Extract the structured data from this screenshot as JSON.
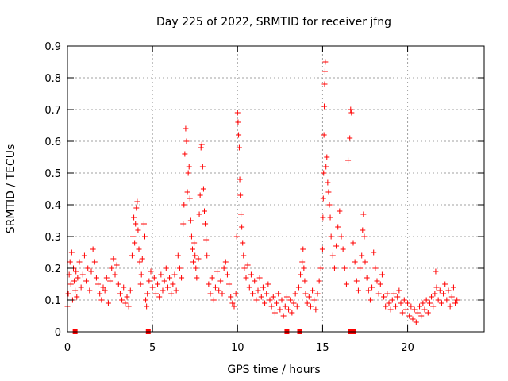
{
  "chart_data": {
    "type": "scatter",
    "title": "Day 225 of 2022, SRMTID for receiver jfng",
    "xlabel": "GPS time / hours",
    "ylabel": "SRMTID / TECUs",
    "xlim": [
      0,
      24.5
    ],
    "ylim": [
      0,
      0.9
    ],
    "xticks": [
      0,
      5,
      10,
      15,
      20
    ],
    "yticks": [
      0,
      0.1,
      0.2,
      0.3,
      0.4,
      0.5,
      0.6,
      0.7,
      0.8,
      0.9
    ],
    "xtick_labels": [
      "0",
      "5",
      "10",
      "15",
      "20"
    ],
    "ytick_labels": [
      "0",
      "0.1",
      "0.2",
      "0.3",
      "0.4",
      "0.5",
      "0.6",
      "0.7",
      "0.8",
      "0.9"
    ],
    "grid": true,
    "marker": "+",
    "color": "#ff0000",
    "series": [
      {
        "name": "SRMTID",
        "points": [
          [
            0.0,
            0.08
          ],
          [
            0.05,
            0.12
          ],
          [
            0.1,
            0.18
          ],
          [
            0.15,
            0.22
          ],
          [
            0.2,
            0.15
          ],
          [
            0.25,
            0.25
          ],
          [
            0.3,
            0.1
          ],
          [
            0.35,
            0.2
          ],
          [
            0.4,
            0.16
          ],
          [
            0.45,
            0.13
          ],
          [
            0.5,
            0.19
          ],
          [
            0.55,
            0.11
          ],
          [
            0.6,
            0.17
          ],
          [
            0.7,
            0.22
          ],
          [
            0.8,
            0.14
          ],
          [
            0.9,
            0.18
          ],
          [
            1.0,
            0.24
          ],
          [
            1.1,
            0.16
          ],
          [
            1.2,
            0.2
          ],
          [
            1.3,
            0.13
          ],
          [
            1.4,
            0.19
          ],
          [
            1.5,
            0.26
          ],
          [
            1.6,
            0.22
          ],
          [
            1.7,
            0.17
          ],
          [
            1.8,
            0.15
          ],
          [
            1.9,
            0.12
          ],
          [
            2.0,
            0.1
          ],
          [
            2.1,
            0.14
          ],
          [
            2.2,
            0.13
          ],
          [
            2.3,
            0.17
          ],
          [
            2.4,
            0.09
          ],
          [
            2.5,
            0.16
          ],
          [
            2.6,
            0.2
          ],
          [
            2.7,
            0.23
          ],
          [
            2.8,
            0.18
          ],
          [
            2.9,
            0.21
          ],
          [
            3.0,
            0.15
          ],
          [
            3.1,
            0.12
          ],
          [
            3.2,
            0.1
          ],
          [
            3.3,
            0.14
          ],
          [
            3.4,
            0.09
          ],
          [
            3.5,
            0.11
          ],
          [
            3.6,
            0.08
          ],
          [
            3.7,
            0.13
          ],
          [
            3.8,
            0.24
          ],
          [
            3.85,
            0.3
          ],
          [
            3.9,
            0.36
          ],
          [
            3.95,
            0.28
          ],
          [
            4.0,
            0.34
          ],
          [
            4.05,
            0.39
          ],
          [
            4.1,
            0.41
          ],
          [
            4.15,
            0.32
          ],
          [
            4.2,
            0.26
          ],
          [
            4.25,
            0.22
          ],
          [
            4.3,
            0.15
          ],
          [
            4.35,
            0.18
          ],
          [
            4.4,
            0.23
          ],
          [
            4.5,
            0.34
          ],
          [
            4.55,
            0.3
          ],
          [
            4.6,
            0.1
          ],
          [
            4.65,
            0.08
          ],
          [
            4.7,
            0.12
          ],
          [
            4.8,
            0.16
          ],
          [
            4.9,
            0.19
          ],
          [
            5.0,
            0.14
          ],
          [
            5.1,
            0.17
          ],
          [
            5.2,
            0.12
          ],
          [
            5.3,
            0.15
          ],
          [
            5.4,
            0.11
          ],
          [
            5.5,
            0.18
          ],
          [
            5.6,
            0.13
          ],
          [
            5.7,
            0.16
          ],
          [
            5.8,
            0.2
          ],
          [
            5.9,
            0.14
          ],
          [
            6.0,
            0.17
          ],
          [
            6.1,
            0.12
          ],
          [
            6.2,
            0.15
          ],
          [
            6.3,
            0.18
          ],
          [
            6.4,
            0.13
          ],
          [
            6.5,
            0.24
          ],
          [
            6.6,
            0.2
          ],
          [
            6.7,
            0.17
          ],
          [
            6.8,
            0.34
          ],
          [
            6.85,
            0.4
          ],
          [
            6.9,
            0.56
          ],
          [
            6.95,
            0.64
          ],
          [
            7.0,
            0.6
          ],
          [
            7.05,
            0.44
          ],
          [
            7.1,
            0.5
          ],
          [
            7.15,
            0.52
          ],
          [
            7.2,
            0.42
          ],
          [
            7.25,
            0.35
          ],
          [
            7.3,
            0.3
          ],
          [
            7.35,
            0.26
          ],
          [
            7.4,
            0.22
          ],
          [
            7.45,
            0.28
          ],
          [
            7.5,
            0.24
          ],
          [
            7.55,
            0.2
          ],
          [
            7.6,
            0.17
          ],
          [
            7.7,
            0.23
          ],
          [
            7.75,
            0.37
          ],
          [
            7.8,
            0.43
          ],
          [
            7.85,
            0.58
          ],
          [
            7.9,
            0.59
          ],
          [
            7.95,
            0.52
          ],
          [
            8.0,
            0.45
          ],
          [
            8.05,
            0.38
          ],
          [
            8.1,
            0.34
          ],
          [
            8.15,
            0.29
          ],
          [
            8.2,
            0.24
          ],
          [
            8.3,
            0.15
          ],
          [
            8.4,
            0.12
          ],
          [
            8.5,
            0.17
          ],
          [
            8.6,
            0.1
          ],
          [
            8.7,
            0.14
          ],
          [
            8.8,
            0.19
          ],
          [
            8.9,
            0.13
          ],
          [
            9.0,
            0.16
          ],
          [
            9.1,
            0.12
          ],
          [
            9.2,
            0.2
          ],
          [
            9.3,
            0.22
          ],
          [
            9.4,
            0.18
          ],
          [
            9.5,
            0.15
          ],
          [
            9.6,
            0.11
          ],
          [
            9.7,
            0.09
          ],
          [
            9.8,
            0.08
          ],
          [
            9.9,
            0.12
          ],
          [
            9.95,
            0.3
          ],
          [
            10.0,
            0.69
          ],
          [
            10.03,
            0.66
          ],
          [
            10.06,
            0.62
          ],
          [
            10.1,
            0.58
          ],
          [
            10.13,
            0.48
          ],
          [
            10.16,
            0.43
          ],
          [
            10.2,
            0.37
          ],
          [
            10.25,
            0.33
          ],
          [
            10.3,
            0.28
          ],
          [
            10.35,
            0.24
          ],
          [
            10.4,
            0.2
          ],
          [
            10.5,
            0.17
          ],
          [
            10.6,
            0.21
          ],
          [
            10.7,
            0.14
          ],
          [
            10.8,
            0.18
          ],
          [
            10.9,
            0.12
          ],
          [
            11.0,
            0.16
          ],
          [
            11.1,
            0.1
          ],
          [
            11.2,
            0.13
          ],
          [
            11.3,
            0.17
          ],
          [
            11.4,
            0.11
          ],
          [
            11.5,
            0.14
          ],
          [
            11.6,
            0.09
          ],
          [
            11.7,
            0.12
          ],
          [
            11.8,
            0.15
          ],
          [
            11.9,
            0.1
          ],
          [
            12.0,
            0.08
          ],
          [
            12.1,
            0.11
          ],
          [
            12.2,
            0.06
          ],
          [
            12.3,
            0.09
          ],
          [
            12.4,
            0.12
          ],
          [
            12.5,
            0.07
          ],
          [
            12.6,
            0.1
          ],
          [
            12.7,
            0.05
          ],
          [
            12.8,
            0.08
          ],
          [
            12.9,
            0.11
          ],
          [
            13.0,
            0.07
          ],
          [
            13.1,
            0.1
          ],
          [
            13.2,
            0.06
          ],
          [
            13.3,
            0.09
          ],
          [
            13.4,
            0.12
          ],
          [
            13.5,
            0.08
          ],
          [
            13.6,
            0.14
          ],
          [
            13.7,
            0.18
          ],
          [
            13.8,
            0.22
          ],
          [
            13.85,
            0.26
          ],
          [
            13.9,
            0.2
          ],
          [
            13.95,
            0.16
          ],
          [
            14.0,
            0.12
          ],
          [
            14.1,
            0.09
          ],
          [
            14.2,
            0.11
          ],
          [
            14.3,
            0.08
          ],
          [
            14.4,
            0.13
          ],
          [
            14.5,
            0.1
          ],
          [
            14.6,
            0.07
          ],
          [
            14.7,
            0.12
          ],
          [
            14.8,
            0.16
          ],
          [
            14.9,
            0.2
          ],
          [
            15.0,
            0.26
          ],
          [
            15.02,
            0.36
          ],
          [
            15.04,
            0.42
          ],
          [
            15.06,
            0.5
          ],
          [
            15.08,
            0.62
          ],
          [
            15.1,
            0.71
          ],
          [
            15.12,
            0.78
          ],
          [
            15.14,
            0.82
          ],
          [
            15.16,
            0.85
          ],
          [
            15.2,
            0.52
          ],
          [
            15.25,
            0.55
          ],
          [
            15.3,
            0.47
          ],
          [
            15.35,
            0.44
          ],
          [
            15.4,
            0.4
          ],
          [
            15.45,
            0.36
          ],
          [
            15.5,
            0.3
          ],
          [
            15.6,
            0.24
          ],
          [
            15.7,
            0.2
          ],
          [
            15.8,
            0.27
          ],
          [
            15.9,
            0.33
          ],
          [
            16.0,
            0.38
          ],
          [
            16.1,
            0.3
          ],
          [
            16.2,
            0.26
          ],
          [
            16.3,
            0.2
          ],
          [
            16.4,
            0.15
          ],
          [
            16.5,
            0.54
          ],
          [
            16.6,
            0.61
          ],
          [
            16.65,
            0.7
          ],
          [
            16.7,
            0.69
          ],
          [
            16.8,
            0.28
          ],
          [
            16.9,
            0.22
          ],
          [
            17.0,
            0.16
          ],
          [
            17.1,
            0.13
          ],
          [
            17.2,
            0.2
          ],
          [
            17.3,
            0.24
          ],
          [
            17.35,
            0.32
          ],
          [
            17.4,
            0.37
          ],
          [
            17.45,
            0.3
          ],
          [
            17.5,
            0.22
          ],
          [
            17.6,
            0.17
          ],
          [
            17.7,
            0.13
          ],
          [
            17.8,
            0.1
          ],
          [
            17.9,
            0.14
          ],
          [
            18.0,
            0.25
          ],
          [
            18.1,
            0.2
          ],
          [
            18.2,
            0.16
          ],
          [
            18.3,
            0.12
          ],
          [
            18.4,
            0.15
          ],
          [
            18.5,
            0.18
          ],
          [
            18.6,
            0.11
          ],
          [
            18.7,
            0.08
          ],
          [
            18.8,
            0.12
          ],
          [
            18.9,
            0.09
          ],
          [
            19.0,
            0.07
          ],
          [
            19.1,
            0.1
          ],
          [
            19.2,
            0.12
          ],
          [
            19.3,
            0.08
          ],
          [
            19.4,
            0.11
          ],
          [
            19.5,
            0.13
          ],
          [
            19.6,
            0.09
          ],
          [
            19.7,
            0.06
          ],
          [
            19.8,
            0.1
          ],
          [
            19.9,
            0.07
          ],
          [
            20.0,
            0.09
          ],
          [
            20.1,
            0.05
          ],
          [
            20.2,
            0.08
          ],
          [
            20.3,
            0.04
          ],
          [
            20.4,
            0.07
          ],
          [
            20.5,
            0.03
          ],
          [
            20.6,
            0.06
          ],
          [
            20.7,
            0.08
          ],
          [
            20.8,
            0.05
          ],
          [
            20.9,
            0.09
          ],
          [
            21.0,
            0.07
          ],
          [
            21.1,
            0.1
          ],
          [
            21.2,
            0.06
          ],
          [
            21.3,
            0.09
          ],
          [
            21.4,
            0.11
          ],
          [
            21.5,
            0.08
          ],
          [
            21.6,
            0.12
          ],
          [
            21.65,
            0.19
          ],
          [
            21.7,
            0.14
          ],
          [
            21.8,
            0.1
          ],
          [
            21.9,
            0.13
          ],
          [
            22.0,
            0.09
          ],
          [
            22.1,
            0.12
          ],
          [
            22.2,
            0.15
          ],
          [
            22.3,
            0.1
          ],
          [
            22.4,
            0.13
          ],
          [
            22.5,
            0.08
          ],
          [
            22.6,
            0.11
          ],
          [
            22.7,
            0.14
          ],
          [
            22.8,
            0.09
          ],
          [
            22.9,
            0.1
          ]
        ]
      }
    ],
    "gap_markers": [
      0.45,
      4.75,
      12.9,
      13.65,
      16.65,
      16.8
    ]
  }
}
